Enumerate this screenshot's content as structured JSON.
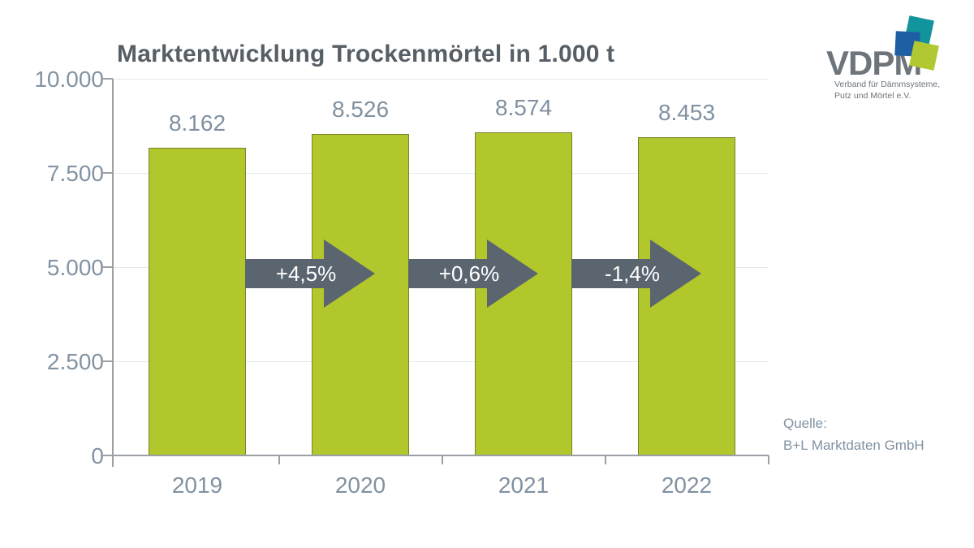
{
  "title": "Marktentwicklung Trockenmörtel in 1.000 t",
  "logo": {
    "text": "VDPM",
    "tagline1": "Verband für Dämmsysteme,",
    "tagline2": "Putz und Mörtel e.V.",
    "square_blue": "#1d5fa5",
    "square_teal": "#12949c",
    "square_green": "#b2c832"
  },
  "source": {
    "label": "Quelle:",
    "value": "B+L Marktdaten GmbH"
  },
  "chart_data": {
    "type": "bar",
    "title": "Marktentwicklung Trockenmörtel in 1.000 t",
    "categories": [
      "2019",
      "2020",
      "2021",
      "2022"
    ],
    "values": [
      8162,
      8526,
      8574,
      8453
    ],
    "value_labels": [
      "8.162",
      "8.526",
      "8.574",
      "8.453"
    ],
    "changes": [
      {
        "from": "2019",
        "to": "2020",
        "label": "+4,5%",
        "percent": 4.5
      },
      {
        "from": "2020",
        "to": "2021",
        "label": "+0,6%",
        "percent": 0.6
      },
      {
        "from": "2021",
        "to": "2022",
        "label": "-1,4%",
        "percent": -1.4
      }
    ],
    "ylim": [
      0,
      10000
    ],
    "yticks": [
      {
        "value": 0,
        "label": "0"
      },
      {
        "value": 2500,
        "label": "2.500"
      },
      {
        "value": 5000,
        "label": "5.000"
      },
      {
        "value": 7500,
        "label": "7.500"
      },
      {
        "value": 10000,
        "label": "10.000"
      }
    ],
    "grid": true,
    "legend": "none",
    "bar_color": "#b2c72c",
    "bar_border_color": "#79812f",
    "arrow_color": "#5b656f",
    "label_color": "#8191a1",
    "title_color": "#575f66"
  }
}
